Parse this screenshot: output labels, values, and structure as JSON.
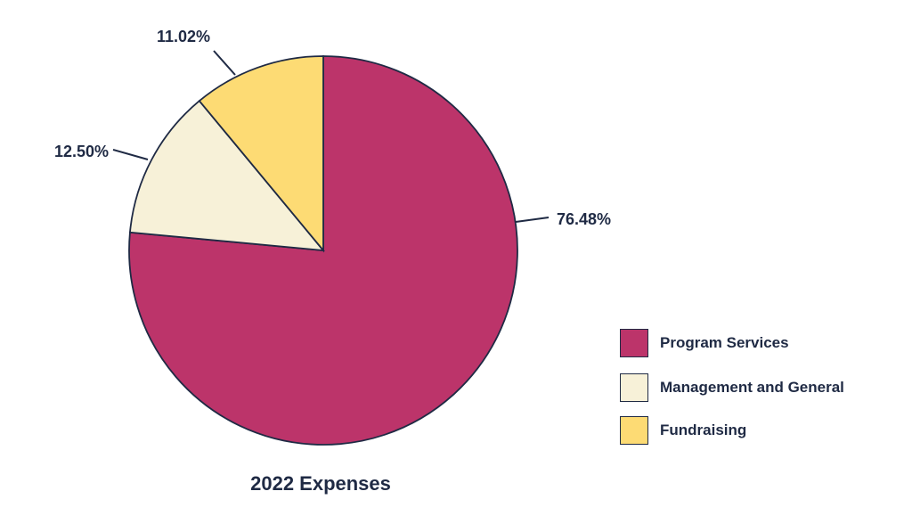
{
  "chart_data": {
    "type": "pie",
    "title": "2022 Expenses",
    "categories": [
      "Program Services",
      "Management and General",
      "Fundraising"
    ],
    "values": [
      76.48,
      12.5,
      11.02
    ],
    "labels": [
      "76.48%",
      "12.50%",
      "11.02%"
    ],
    "colors": [
      "#BC346A",
      "#F7F1D8",
      "#FDDB74"
    ],
    "stroke_color": "#1f2a44",
    "start_angle": "12 o'clock",
    "direction": "clockwise",
    "legend_position": "right"
  }
}
